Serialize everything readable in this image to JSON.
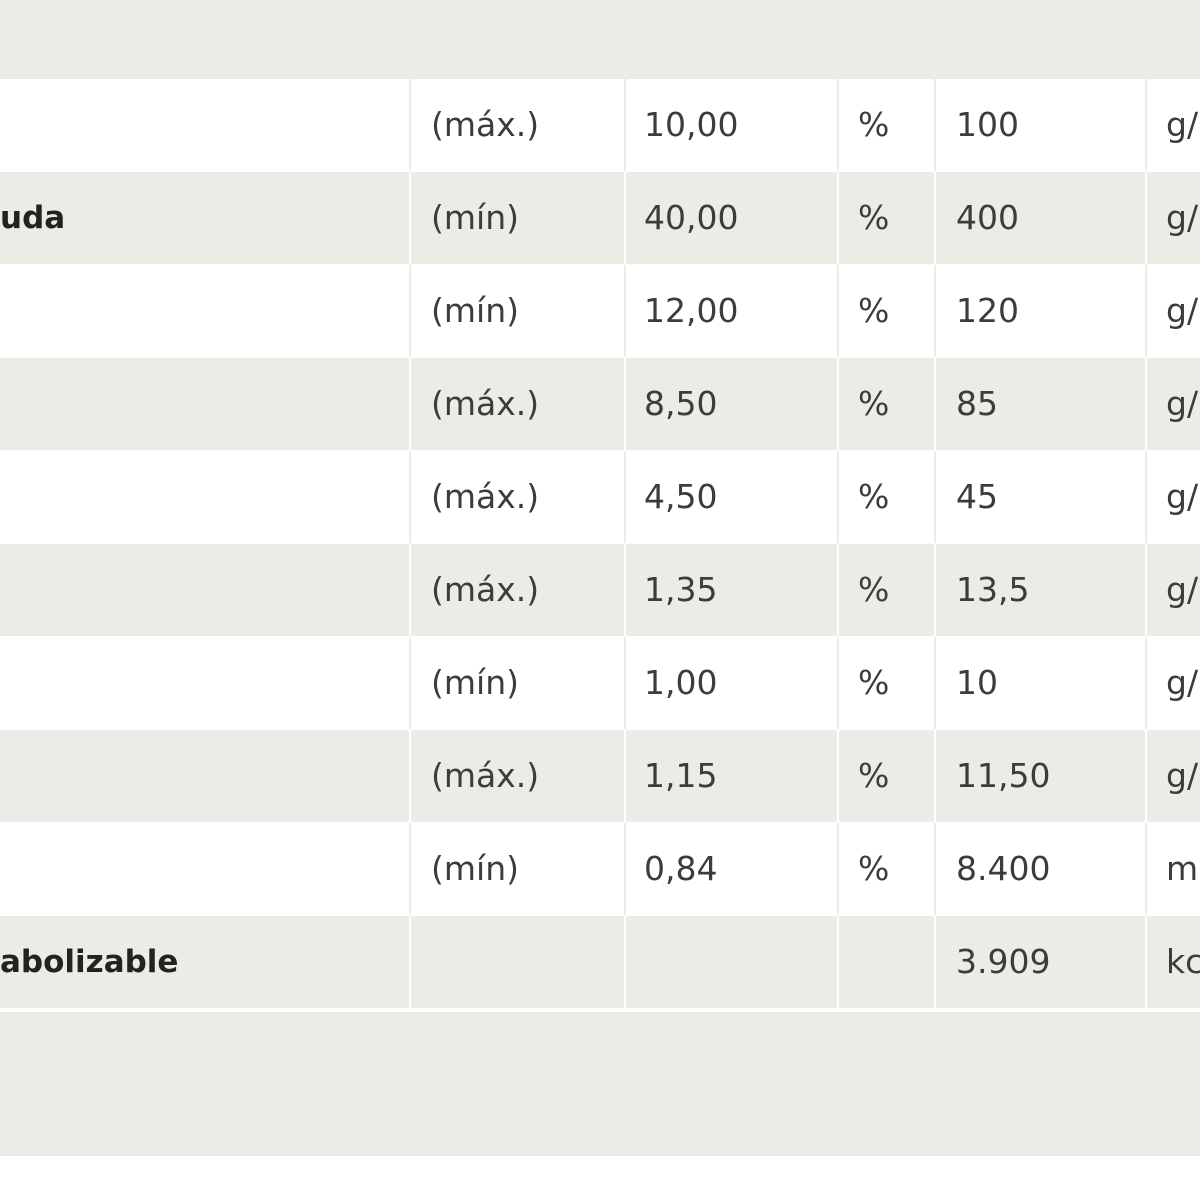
{
  "colors": {
    "band": "#ecebe6",
    "row_alt": "#ecebe6",
    "row_plain": "#ffffff",
    "text": "#3c3c3c",
    "label_text": "#222222"
  },
  "rows": [
    {
      "name": "",
      "qualifier": "(máx.)",
      "percent": "10,00",
      "symbol": "%",
      "value": "100",
      "unit": "g/"
    },
    {
      "name": "uda",
      "qualifier": "(mín)",
      "percent": "40,00",
      "symbol": "%",
      "value": "400",
      "unit": "g/"
    },
    {
      "name": "",
      "qualifier": "(mín)",
      "percent": "12,00",
      "symbol": "%",
      "value": "120",
      "unit": "g/"
    },
    {
      "name": "",
      "qualifier": "(máx.)",
      "percent": "8,50",
      "symbol": "%",
      "value": "85",
      "unit": "g/"
    },
    {
      "name": "",
      "qualifier": "(máx.)",
      "percent": "4,50",
      "symbol": "%",
      "value": "45",
      "unit": "g/"
    },
    {
      "name": "",
      "qualifier": "(máx.)",
      "percent": "1,35",
      "symbol": "%",
      "value": "13,5",
      "unit": "g/"
    },
    {
      "name": "",
      "qualifier": "(mín)",
      "percent": "1,00",
      "symbol": "%",
      "value": "10",
      "unit": "g/"
    },
    {
      "name": "",
      "qualifier": "(máx.)",
      "percent": "1,15",
      "symbol": "%",
      "value": "11,50",
      "unit": "g/"
    },
    {
      "name": "",
      "qualifier": "(mín)",
      "percent": "0,84",
      "symbol": "%",
      "value": "8.400",
      "unit": "m"
    },
    {
      "name": "abolizable",
      "qualifier": "",
      "percent": "",
      "symbol": "",
      "value": "3.909",
      "unit": "kc"
    }
  ]
}
